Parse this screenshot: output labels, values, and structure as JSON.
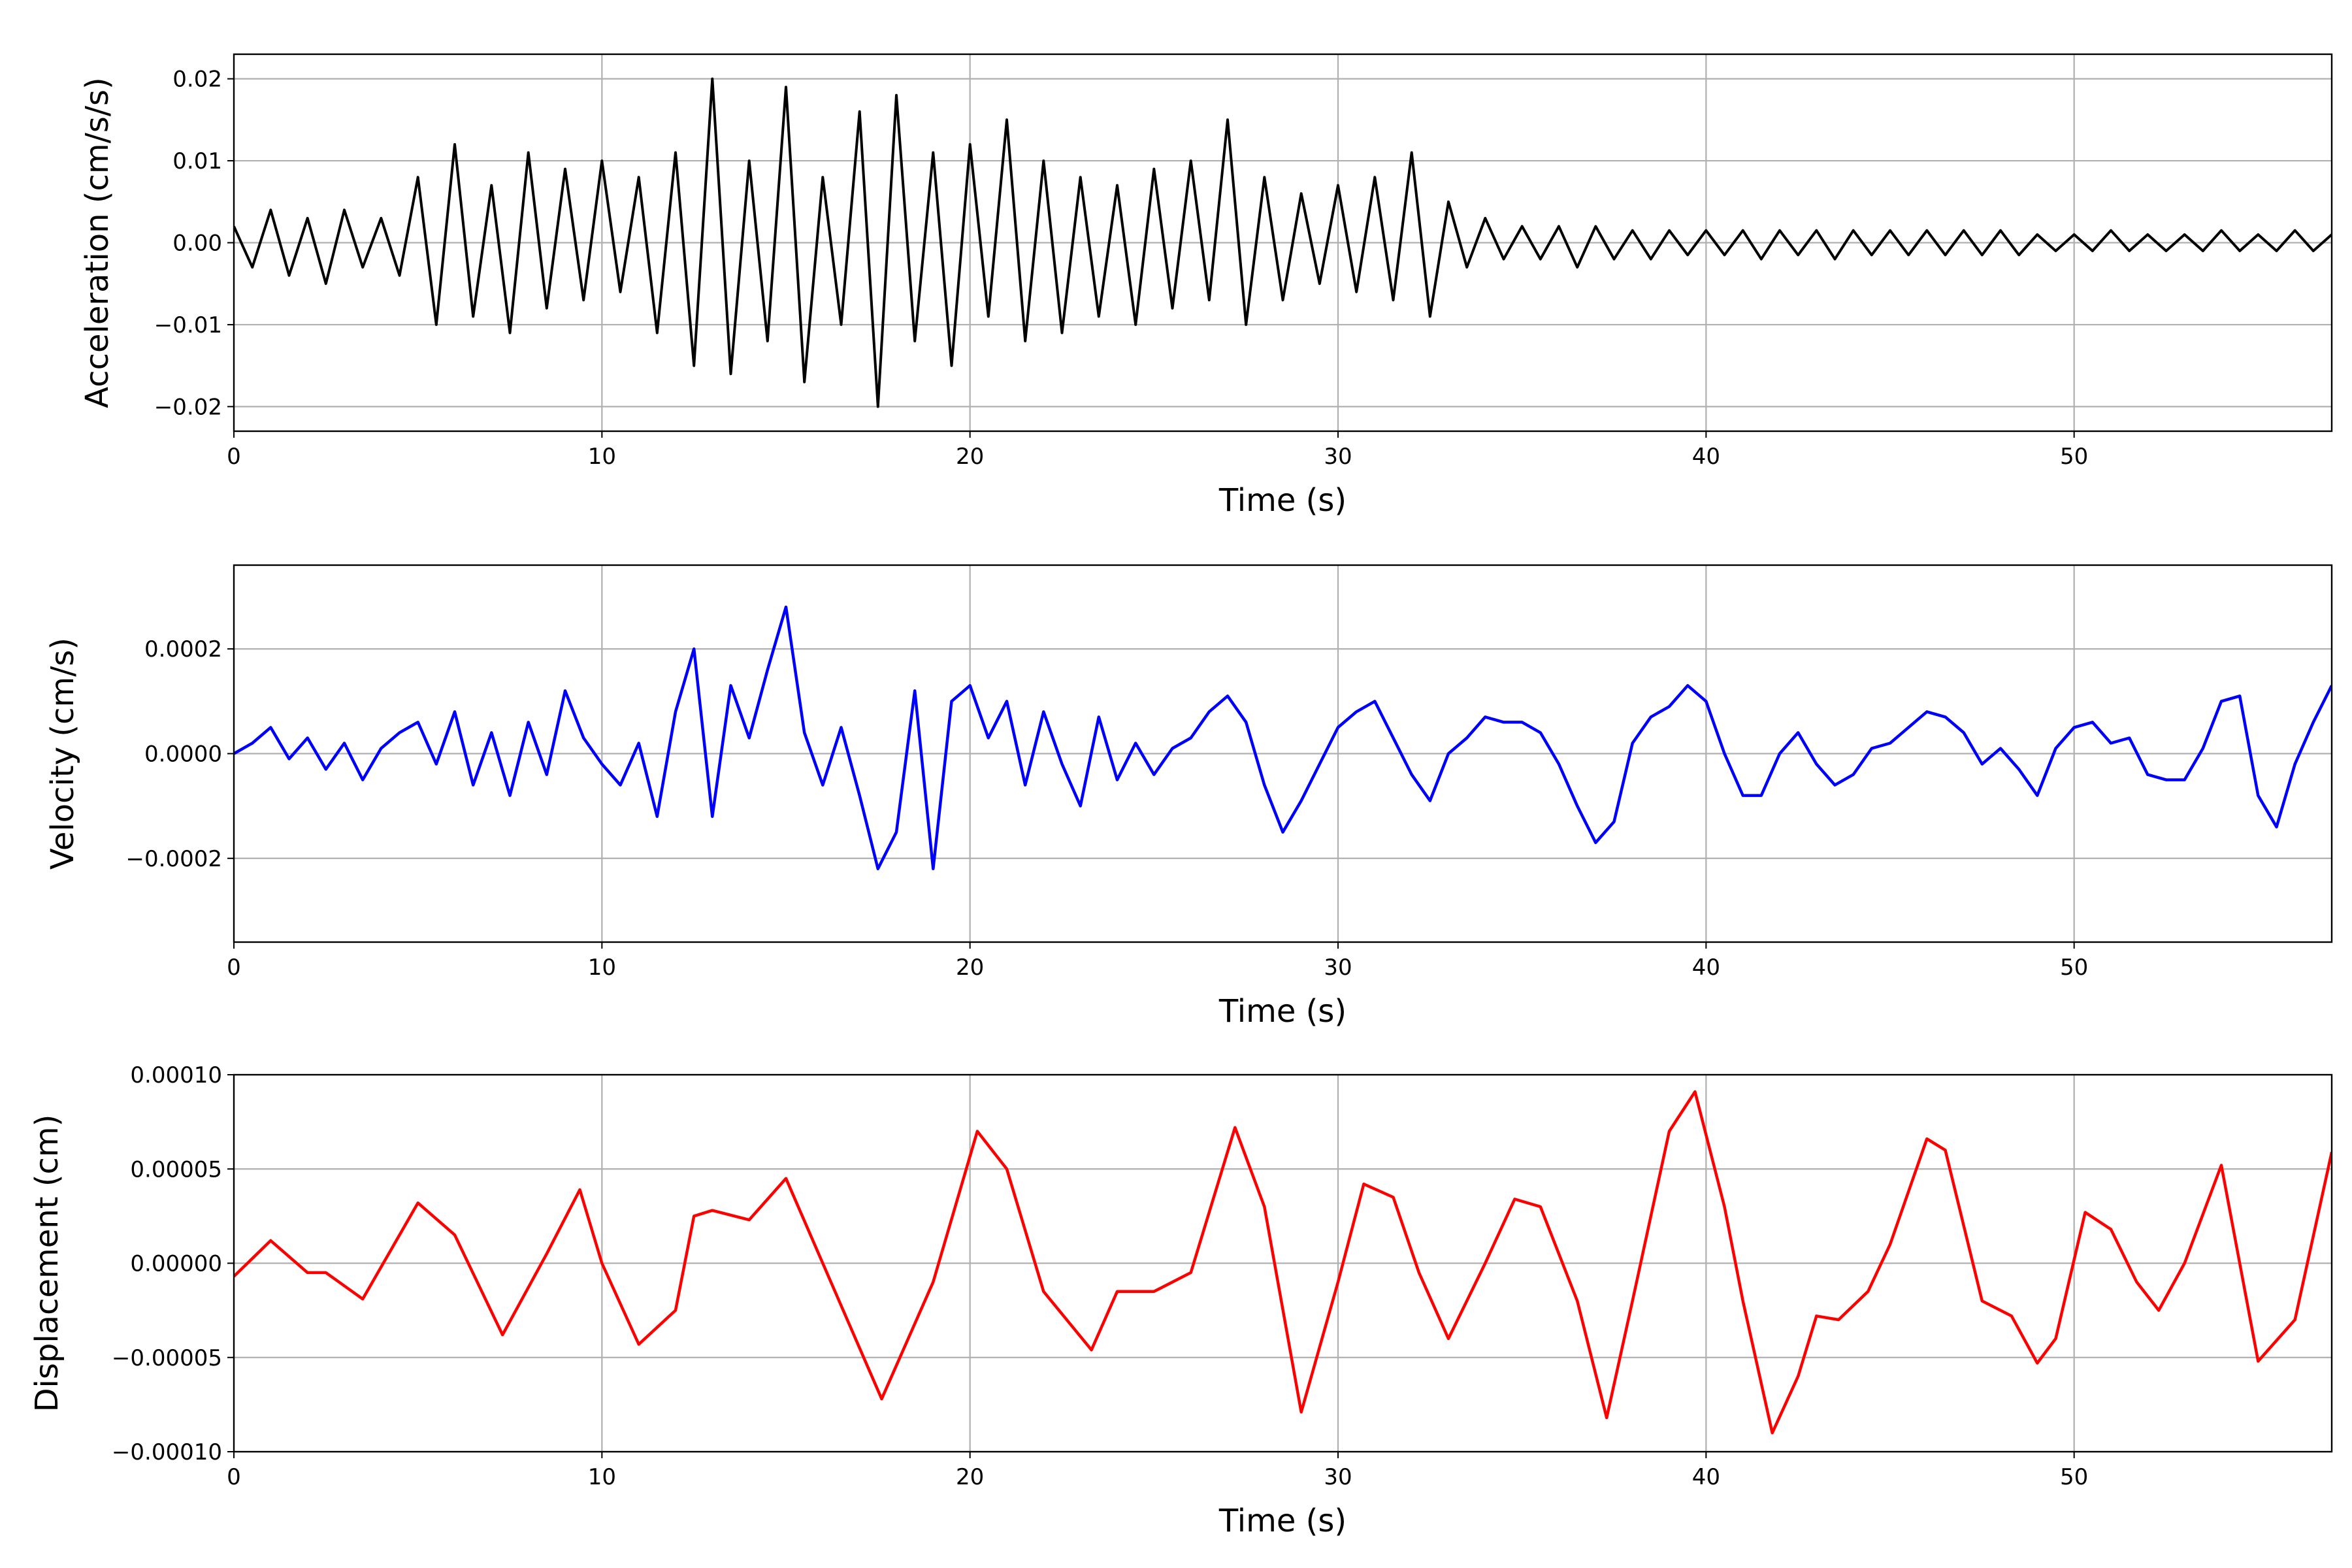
{
  "chart_data": [
    {
      "type": "line",
      "title": "",
      "xlabel": "Time (s)",
      "ylabel": "Acceleration (cm/s/s)",
      "xlim": [
        0,
        57
      ],
      "ylim": [
        -0.023,
        0.023
      ],
      "xticks": [
        0,
        10,
        20,
        30,
        40,
        50
      ],
      "xtick_labels": [
        "0",
        "10",
        "20",
        "30",
        "40",
        "50"
      ],
      "yticks": [
        -0.02,
        -0.01,
        0,
        0.01,
        0.02
      ],
      "ytick_labels": [
        "−0.02",
        "−0.01",
        "0.00",
        "0.01",
        "0.02"
      ],
      "grid": true,
      "color": "#000000",
      "t_start": 0,
      "dt": 0.5,
      "value_scale": 0.001,
      "values": [
        2,
        -3,
        4,
        -4,
        3,
        -5,
        4,
        -3,
        3,
        -4,
        8,
        -10,
        12,
        -9,
        7,
        -11,
        11,
        -8,
        9,
        -7,
        10,
        -6,
        8,
        -11,
        11,
        -15,
        20,
        -16,
        10,
        -12,
        19,
        -17,
        8,
        -10,
        16,
        -20,
        18,
        -12,
        11,
        -15,
        12,
        -9,
        15,
        -12,
        10,
        -11,
        8,
        -9,
        7,
        -10,
        9,
        -8,
        10,
        -7,
        15,
        -10,
        8,
        -7,
        6,
        -5,
        7,
        -6,
        8,
        -7,
        11,
        -9,
        5,
        -3,
        3,
        -2,
        2,
        -2,
        2,
        -3,
        2,
        -2,
        1.5,
        -2,
        1.5,
        -1.5,
        1.5,
        -1.5,
        1.5,
        -2,
        1.5,
        -1.5,
        1.5,
        -2,
        1.5,
        -1.5,
        1.5,
        -1.5,
        1.5,
        -1.5,
        1.5,
        -1.5,
        1.5,
        -1.5,
        1,
        -1,
        1,
        -1,
        1.5,
        -1,
        1,
        -1,
        1,
        -1,
        1.5,
        -1,
        1,
        -1,
        1.5,
        -1,
        1
      ]
    },
    {
      "type": "line",
      "title": "",
      "xlabel": "Time (s)",
      "ylabel": "Velocity (cm/s)",
      "xlim": [
        0,
        57
      ],
      "ylim": [
        -0.00036,
        0.00036
      ],
      "xticks": [
        0,
        10,
        20,
        30,
        40,
        50
      ],
      "xtick_labels": [
        "0",
        "10",
        "20",
        "30",
        "40",
        "50"
      ],
      "yticks": [
        -0.0002,
        0,
        0.0002
      ],
      "ytick_labels": [
        "−0.0002",
        "0.0000",
        "0.0002"
      ],
      "grid": true,
      "color": "#0000ff",
      "t_start": 0,
      "dt": 0.5,
      "value_scale": 0.0001,
      "values": [
        0,
        0.2,
        0.5,
        -0.1,
        0.3,
        -0.3,
        0.2,
        -0.5,
        0.1,
        0.4,
        0.6,
        -0.2,
        0.8,
        -0.6,
        0.4,
        -0.8,
        0.6,
        -0.4,
        1.2,
        0.3,
        -0.2,
        -0.6,
        0.2,
        -1.2,
        0.8,
        2.0,
        -1.2,
        1.3,
        0.3,
        1.6,
        2.8,
        0.4,
        -0.6,
        0.5,
        -0.8,
        -2.2,
        -1.5,
        1.2,
        -2.2,
        1.0,
        1.3,
        0.3,
        1.0,
        -0.6,
        0.8,
        -0.2,
        -1.0,
        0.7,
        -0.5,
        0.2,
        -0.4,
        0.1,
        0.3,
        0.8,
        1.1,
        0.6,
        -0.6,
        -1.5,
        -0.9,
        -0.2,
        0.5,
        0.8,
        1.0,
        0.3,
        -0.4,
        -0.9,
        0,
        0.3,
        0.7,
        0.6,
        0.6,
        0.4,
        -0.2,
        -1.0,
        -1.7,
        -1.3,
        0.2,
        0.7,
        0.9,
        1.3,
        1.0,
        0,
        -0.8,
        -0.8,
        0,
        0.4,
        -0.2,
        -0.6,
        -0.4,
        0.1,
        0.2,
        0.5,
        0.8,
        0.7,
        0.4,
        -0.2,
        0.1,
        -0.3,
        -0.8,
        0.1,
        0.5,
        0.6,
        0.2,
        0.3,
        -0.4,
        -0.5,
        -0.5,
        0.1,
        1.0,
        1.1,
        -0.8,
        -1.4,
        -0.2,
        0.6,
        1.3
      ]
    },
    {
      "type": "line",
      "title": "",
      "xlabel": "Time (s)",
      "ylabel": "Displacement (cm)",
      "xlim": [
        0,
        57
      ],
      "ylim": [
        -0.0001,
        0.0001
      ],
      "xticks": [
        0,
        10,
        20,
        30,
        40,
        50
      ],
      "xtick_labels": [
        "0",
        "10",
        "20",
        "30",
        "40",
        "50"
      ],
      "yticks": [
        -0.0001,
        -5e-05,
        0,
        5e-05,
        0.0001
      ],
      "ytick_labels": [
        "−0.00010",
        "−0.00005",
        "0.00000",
        "0.00005",
        "0.00010"
      ],
      "grid": true,
      "color": "#ff0000",
      "value_scale": 1e-05,
      "t": [
        0,
        1,
        2,
        2.5,
        3.5,
        5,
        6,
        7.3,
        8.5,
        9.4,
        10,
        11,
        12,
        12.5,
        13,
        14,
        15,
        16,
        17.6,
        19,
        20.2,
        21,
        22,
        23.3,
        24,
        25,
        26,
        27.2,
        28,
        29,
        30,
        30.7,
        31.5,
        32.2,
        33,
        34,
        34.8,
        35.5,
        36.5,
        37.3,
        38,
        39,
        39.7,
        40.5,
        41,
        41.8,
        42.5,
        43,
        43.6,
        44.4,
        45,
        46,
        46.5,
        47.5,
        48.3,
        49,
        49.5,
        50.3,
        51,
        51.7,
        52.3,
        53,
        54,
        55,
        56,
        57
      ],
      "values": [
        -0.7,
        1.2,
        -0.5,
        -0.5,
        -1.9,
        3.2,
        1.5,
        -3.8,
        0.5,
        3.9,
        0,
        -4.3,
        -2.5,
        2.5,
        2.8,
        2.3,
        4.5,
        0,
        -7.2,
        -1,
        7,
        5,
        -1.5,
        -4.6,
        -1.5,
        -1.5,
        -0.5,
        7.2,
        3,
        -7.9,
        -1,
        4.2,
        3.5,
        -0.5,
        -4,
        0,
        3.4,
        3,
        -2,
        -8.2,
        -2,
        7,
        9.1,
        3,
        -2,
        -9,
        -6,
        -2.8,
        -3,
        -1.5,
        1,
        6.6,
        6,
        -2,
        -2.8,
        -5.3,
        -4,
        2.7,
        1.8,
        -1,
        -2.5,
        0,
        5.2,
        -5.2,
        -3,
        5.9
      ]
    }
  ]
}
